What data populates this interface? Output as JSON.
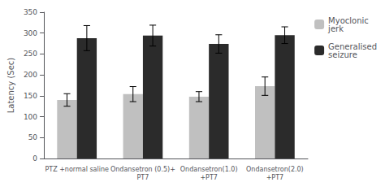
{
  "chart_data": {
    "type": "bar",
    "categories": [
      "PTZ +normal saline",
      "Ondansetron (0.5)+\nPT7",
      "Ondansetron(1.0)\n+PT7",
      "Ondansetron(2.0)\n+PT7"
    ],
    "series": [
      {
        "name": "Myoclonic\njerk",
        "color": "#c0c0c0",
        "values": [
          140,
          154,
          148,
          173
        ],
        "errors": [
          15,
          18,
          12,
          22
        ]
      },
      {
        "name": "Generalised\nseizure",
        "color": "#2b2b2b",
        "values": [
          288,
          294,
          274,
          295
        ],
        "errors": [
          30,
          25,
          22,
          20
        ]
      }
    ],
    "ylabel": "Latency (Sec)",
    "ylim": [
      0,
      350
    ],
    "yticks": [
      0,
      50,
      100,
      150,
      200,
      250,
      300,
      350
    ],
    "grid": false,
    "legend": "upper right"
  }
}
